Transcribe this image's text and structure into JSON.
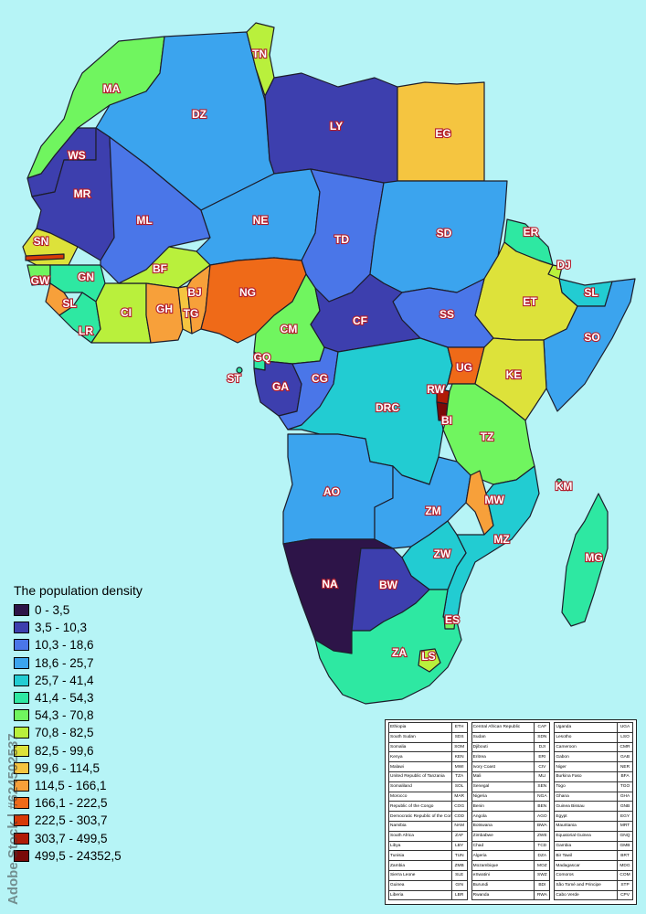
{
  "legend": {
    "title": "The population density",
    "items": [
      {
        "range": "0 - 3,5",
        "color": "#2d1448"
      },
      {
        "range": "3,5 - 10,3",
        "color": "#3d3fae"
      },
      {
        "range": "10,3 - 18,6",
        "color": "#4a76e8"
      },
      {
        "range": "18,6 - 25,7",
        "color": "#3ba4ee"
      },
      {
        "range": "25,7 - 41,4",
        "color": "#22ccd2"
      },
      {
        "range": "41,4 - 54,3",
        "color": "#2ee8a2"
      },
      {
        "range": "54,3 - 70,8",
        "color": "#70f55f"
      },
      {
        "range": "70,8 - 82,5",
        "color": "#b9f03c"
      },
      {
        "range": "82,5 - 99,6",
        "color": "#dde23a"
      },
      {
        "range": "99,6 - 114,5",
        "color": "#f5c540"
      },
      {
        "range": "114,5 - 166,1",
        "color": "#f7a03a"
      },
      {
        "range": "166,1 - 222,5",
        "color": "#ef6a18"
      },
      {
        "range": "222,5 - 303,7",
        "color": "#d73a08"
      },
      {
        "range": "303,7 - 499,5",
        "color": "#b01c06"
      },
      {
        "range": "499,5 - 24352,5",
        "color": "#7a0a08"
      }
    ]
  },
  "country_labels": [
    "MA",
    "TN",
    "DZ",
    "LY",
    "EG",
    "WS",
    "MR",
    "ML",
    "NE",
    "TD",
    "SD",
    "ER",
    "DJ",
    "SN",
    "GW",
    "GN",
    "SL",
    "LR",
    "CI",
    "BF",
    "GH",
    "TG",
    "BJ",
    "NG",
    "CM",
    "CF",
    "SS",
    "ET",
    "SL",
    "SO",
    "ST",
    "GQ",
    "GA",
    "CG",
    "UG",
    "KE",
    "RW",
    "BI",
    "DRC",
    "TZ",
    "AO",
    "KM",
    "MW",
    "ZM",
    "MZ",
    "MG",
    "ZW",
    "NA",
    "BW",
    "ES",
    "ZA",
    "LS"
  ],
  "code_table": [
    [
      [
        "Ethiopia",
        "ETH"
      ],
      [
        "South Sudan",
        "SDS"
      ],
      [
        "Somalia",
        "SOM"
      ],
      [
        "Kenya",
        "KEN"
      ],
      [
        "Malawi",
        "MWI"
      ],
      [
        "United Republic of Tanzania",
        "TZA"
      ],
      [
        "Somaliland",
        "SOL"
      ],
      [
        "Morocco",
        "MAR"
      ],
      [
        "Republic of the Congo",
        "COG"
      ],
      [
        "Democratic Republic of the Congo",
        "COD"
      ],
      [
        "Namibia",
        "NAM"
      ],
      [
        "South Africa",
        "ZAF"
      ],
      [
        "Libya",
        "LBY"
      ],
      [
        "Tunisia",
        "TUN"
      ],
      [
        "Zambia",
        "ZMB"
      ],
      [
        "Sierra Leone",
        "SLE"
      ],
      [
        "Guinea",
        "GIN"
      ],
      [
        "Liberia",
        "LBR"
      ]
    ],
    [
      [
        "Central African Republic",
        "CAF"
      ],
      [
        "Sudan",
        "SDN"
      ],
      [
        "Djibouti",
        "DJI"
      ],
      [
        "Eritrea",
        "ERI"
      ],
      [
        "Ivory Coast",
        "CIV"
      ],
      [
        "Mali",
        "MLI"
      ],
      [
        "Senegal",
        "SEN"
      ],
      [
        "Nigeria",
        "NGA"
      ],
      [
        "Benin",
        "BEN"
      ],
      [
        "Angola",
        "AGO"
      ],
      [
        "Botswana",
        "BWA"
      ],
      [
        "Zimbabwe",
        "ZWE"
      ],
      [
        "Chad",
        "TCD"
      ],
      [
        "Algeria",
        "DZA"
      ],
      [
        "Mozambique",
        "MOZ"
      ],
      [
        "eSwatini",
        "SWZ"
      ],
      [
        "Burundi",
        "BDI"
      ],
      [
        "Rwanda",
        "RWA"
      ]
    ],
    [
      [
        "Uganda",
        "UGA"
      ],
      [
        "Lesotho",
        "LSO"
      ],
      [
        "Cameroon",
        "CMR"
      ],
      [
        "Gabon",
        "GAB"
      ],
      [
        "Niger",
        "NER"
      ],
      [
        "Burkina Faso",
        "BFA"
      ],
      [
        "Togo",
        "TGO"
      ],
      [
        "Ghana",
        "GHA"
      ],
      [
        "Guinea Bissau",
        "GNB"
      ],
      [
        "Egypt",
        "EGY"
      ],
      [
        "Mauritania",
        "MRT"
      ],
      [
        "Equatorial Guinea",
        "GNQ"
      ],
      [
        "Gambia",
        "GMB"
      ],
      [
        "Bir Tawil",
        "BRT"
      ],
      [
        "Madagascar",
        "MDG"
      ],
      [
        "Comoros",
        "COM"
      ],
      [
        "São Tomé and Principe",
        "STP"
      ],
      [
        "Cabo Verde",
        "CPV"
      ]
    ]
  ],
  "watermark": "Adobe Stock | #624502537"
}
